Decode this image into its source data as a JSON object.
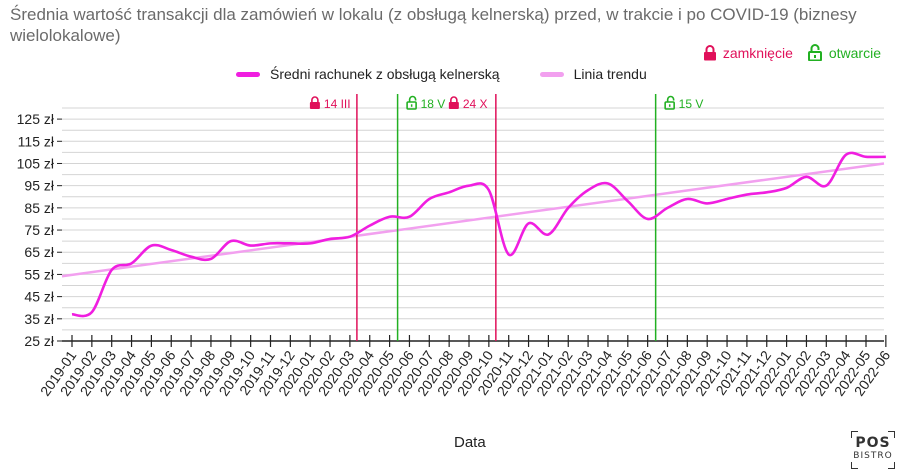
{
  "title": "Średnia wartość transakcji dla zamówień w lokalu (z obsługą kelnerską) przed, w trakcie i po COVID-19 (biznesy wielolokalowe)",
  "legend_events": {
    "closing": {
      "label": "zamknięcie",
      "icon": "lock-closed-icon",
      "color": "#e0105a"
    },
    "opening": {
      "label": "otwarcie",
      "icon": "lock-open-icon",
      "color": "#22b022"
    }
  },
  "logo": {
    "top": "POS",
    "bottom": "BISTRO"
  },
  "chart_data": {
    "type": "line",
    "title": "Średnia wartość transakcji dla zamówień w lokalu (z obsługą kelnerską) przed, w trakcie i po COVID-19 (biznesy wielolokalowe)",
    "xlabel": "Data",
    "ylabel": "",
    "ylim": [
      25,
      130
    ],
    "y_ticks": [
      25,
      35,
      45,
      55,
      65,
      75,
      85,
      95,
      105,
      115,
      125
    ],
    "y_tick_suffix": " zł",
    "grid": true,
    "legend_position": "top",
    "x": [
      "2019-01",
      "2019-02",
      "2019-03",
      "2019-04",
      "2019-05",
      "2019-06",
      "2019-07",
      "2019-08",
      "2019-09",
      "2019-10",
      "2019-11",
      "2019-12",
      "2020-01",
      "2020-02",
      "2020-03",
      "2020-04",
      "2020-05",
      "2020-06",
      "2020-07",
      "2020-08",
      "2020-09",
      "2020-10",
      "2020-11",
      "2020-12",
      "2021-01",
      "2021-02",
      "2021-03",
      "2021-04",
      "2021-05",
      "2021-06",
      "2021-07",
      "2021-08",
      "2021-09",
      "2021-10",
      "2021-11",
      "2021-12",
      "2022-01",
      "2022-02",
      "2022-03",
      "2022-04",
      "2022-05",
      "2022-06"
    ],
    "series": [
      {
        "name": "Średni rachunek z obsługą kelnerską",
        "color": "#f01ee0",
        "values": [
          37,
          38,
          57,
          60,
          68,
          66,
          63,
          62,
          70,
          68,
          69,
          69,
          69,
          71,
          72,
          77,
          81,
          81,
          89,
          92,
          95,
          93,
          64,
          78,
          73,
          85,
          93,
          96,
          88,
          80,
          85,
          89,
          87,
          89,
          91,
          92,
          94,
          99,
          95,
          109,
          108,
          108
        ]
      },
      {
        "name": "Linia trendu",
        "color": "#f2a0ef",
        "trend": [
          54.2,
          105.0
        ]
      }
    ],
    "events": [
      {
        "label": "14 III",
        "type": "closing",
        "at": "2020-03"
      },
      {
        "label": "18 V",
        "type": "opening",
        "at": "2020-05"
      },
      {
        "label": "24 X",
        "type": "closing",
        "at": "2020-10"
      },
      {
        "label": "15 V",
        "type": "opening",
        "at": "2021-06"
      }
    ]
  }
}
